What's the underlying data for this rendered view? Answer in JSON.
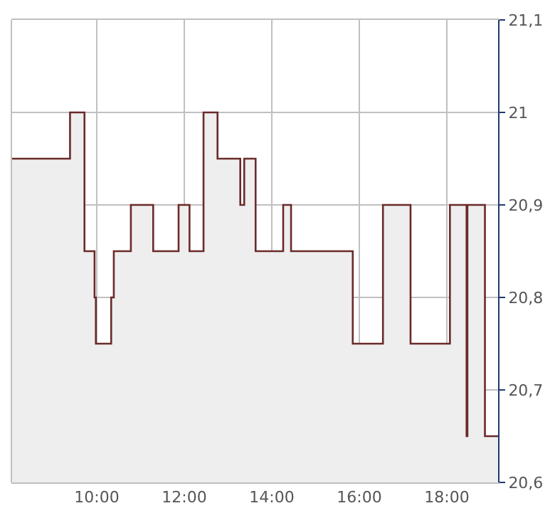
{
  "chart_data": {
    "type": "area",
    "x": [
      8.05,
      9.39,
      9.39,
      9.72,
      9.72,
      9.95,
      9.95,
      9.98,
      9.98,
      10.33,
      10.33,
      10.39,
      10.39,
      10.78,
      10.78,
      11.29,
      11.29,
      11.87,
      11.87,
      12.12,
      12.12,
      12.44,
      12.44,
      12.76,
      12.76,
      13.28,
      13.28,
      13.37,
      13.37,
      13.63,
      13.63,
      14.26,
      14.26,
      14.44,
      14.44,
      15.85,
      15.85,
      16.54,
      16.54,
      17.17,
      17.17,
      18.07,
      18.07,
      18.45,
      18.45,
      18.47,
      18.47,
      18.87,
      18.87,
      19.17
    ],
    "series": [
      {
        "color": "#6b2a2a",
        "values": [
          20.95,
          20.95,
          21.0,
          21.0,
          20.85,
          20.85,
          20.8,
          20.8,
          20.75,
          20.75,
          20.8,
          20.8,
          20.85,
          20.85,
          20.9,
          20.9,
          20.85,
          20.85,
          20.9,
          20.9,
          20.85,
          20.85,
          21.0,
          21.0,
          20.95,
          20.95,
          20.9,
          20.9,
          20.95,
          20.95,
          20.85,
          20.85,
          20.9,
          20.9,
          20.85,
          20.85,
          20.75,
          20.75,
          20.9,
          20.9,
          20.75,
          20.75,
          20.9,
          20.9,
          20.65,
          20.65,
          20.9,
          20.9,
          20.65,
          20.65
        ]
      }
    ],
    "xlim": [
      8.05,
      19.17
    ],
    "xticks": [
      {
        "value": 10,
        "label": "10:00"
      },
      {
        "value": 12,
        "label": "12:00"
      },
      {
        "value": 14,
        "label": "14:00"
      },
      {
        "value": 16,
        "label": "16:00"
      },
      {
        "value": 18,
        "label": "18:00"
      }
    ],
    "ylim": [
      20.6,
      21.1
    ],
    "yticks": [
      {
        "value": 20.6,
        "label": "20,6"
      },
      {
        "value": 20.7,
        "label": "20,7"
      },
      {
        "value": 20.8,
        "label": "20,8"
      },
      {
        "value": 20.9,
        "label": "20,9"
      },
      {
        "value": 21,
        "label": "21"
      },
      {
        "value": 21.1,
        "label": "21,1"
      }
    ],
    "grid": true,
    "legend": false
  }
}
